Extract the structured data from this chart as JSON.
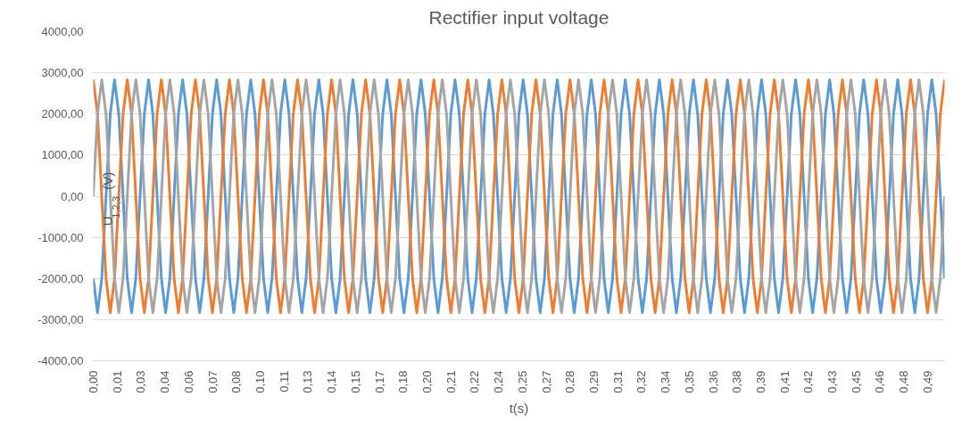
{
  "chart_data": {
    "type": "line",
    "title": "Rectifier input voltage",
    "xlabel": "t(s)",
    "ylabel": "U$_{1,2,3}$(V)",
    "x": [
      0,
      0.0025,
      0.005,
      0.0075,
      0.01,
      0.0125,
      0.015,
      0.0175,
      0.02,
      0.0225,
      0.025,
      0.0275,
      0.03,
      0.0325,
      0.035,
      0.0375,
      0.04,
      0.0425,
      0.045,
      0.0475,
      0.05,
      0.0525,
      0.055,
      0.0575,
      0.06,
      0.0625,
      0.065,
      0.0675,
      0.07,
      0.0725,
      0.075,
      0.0775,
      0.08,
      0.0825,
      0.085,
      0.0875,
      0.09,
      0.0925,
      0.095,
      0.0975,
      0.1,
      0.1025,
      0.105,
      0.1075,
      0.11,
      0.1125,
      0.115,
      0.1175,
      0.12,
      0.1225,
      0.125,
      0.1275,
      0.13,
      0.1325,
      0.135,
      0.1375,
      0.14,
      0.1425,
      0.145,
      0.1475,
      0.15,
      0.1525,
      0.155,
      0.1575,
      0.16,
      0.1625,
      0.165,
      0.1675,
      0.17,
      0.1725,
      0.175,
      0.1775,
      0.18,
      0.1825,
      0.185,
      0.1875,
      0.19,
      0.1925,
      0.195,
      0.1975,
      0.2,
      0.2025,
      0.205,
      0.2075,
      0.21,
      0.2125,
      0.215,
      0.2175,
      0.22,
      0.2225,
      0.225,
      0.2275,
      0.23,
      0.2325,
      0.235,
      0.2375,
      0.24,
      0.2425,
      0.245,
      0.2475,
      0.25,
      0.2525,
      0.255,
      0.2575,
      0.26,
      0.2625,
      0.265,
      0.2675,
      0.27,
      0.2725,
      0.275,
      0.2775,
      0.28,
      0.2825,
      0.285,
      0.2875,
      0.29,
      0.2925,
      0.295,
      0.2975,
      0.3,
      0.3025,
      0.305,
      0.3075,
      0.31,
      0.3125,
      0.315,
      0.3175,
      0.32,
      0.3225,
      0.325,
      0.3275,
      0.33,
      0.3325,
      0.335,
      0.3375,
      0.34,
      0.3425,
      0.345,
      0.3475,
      0.35,
      0.3525,
      0.355,
      0.3575,
      0.36,
      0.3625,
      0.365,
      0.3675,
      0.37,
      0.3725,
      0.375,
      0.3775,
      0.38,
      0.3825,
      0.385,
      0.3875,
      0.39,
      0.3925,
      0.395,
      0.3975,
      0.4,
      0.4025,
      0.405,
      0.4075,
      0.41,
      0.4125,
      0.415,
      0.4175,
      0.42,
      0.4225,
      0.425,
      0.4275,
      0.43,
      0.4325,
      0.435,
      0.4375,
      0.44,
      0.4425,
      0.445,
      0.4475,
      0.45,
      0.4525,
      0.455,
      0.4575,
      0.46,
      0.4625,
      0.465,
      0.4675,
      0.47,
      0.4725,
      0.475,
      0.4775,
      0.48,
      0.4825,
      0.485,
      0.4875,
      0.49,
      0.4925,
      0.495,
      0.4975,
      0.5
    ],
    "series": [
      {
        "color": "#5b9bd5",
        "values": [
          -2000,
          -2830,
          -2000,
          0,
          2000,
          2830,
          2000,
          0,
          -2000,
          -2830,
          -2000,
          0,
          2000,
          2830,
          2000,
          0,
          -2000,
          -2830,
          -2000,
          0,
          2000,
          2830,
          2000,
          0,
          -2000,
          -2830,
          -2000,
          0,
          2000,
          2830,
          2000,
          0,
          -2000,
          -2830,
          -2000,
          0,
          2000,
          2830,
          2000,
          0,
          -2000,
          -2830,
          -2000,
          0,
          2000,
          2830,
          2000,
          0,
          -2000,
          -2830,
          -2000,
          0,
          2000,
          2830,
          2000,
          0,
          -2000,
          -2830,
          -2000,
          0,
          2000,
          2830,
          2000,
          0,
          -2000,
          -2830,
          -2000,
          0,
          2000,
          2830,
          2000,
          0,
          -2000,
          -2830,
          -2000,
          0,
          2000,
          2830,
          2000,
          0,
          -2000,
          -2830,
          -2000,
          0,
          2000,
          2830,
          2000,
          0,
          -2000,
          -2830,
          -2000,
          0,
          2000,
          2830,
          2000,
          0,
          -2000,
          -2830,
          -2000,
          0,
          2000,
          2830,
          2000,
          0,
          -2000,
          -2830,
          -2000,
          0,
          2000,
          2830,
          2000,
          0,
          -2000,
          -2830,
          -2000,
          0,
          2000,
          2830,
          2000,
          0,
          -2000,
          -2830,
          -2000,
          0,
          2000,
          2830,
          2000,
          0,
          -2000,
          -2830,
          -2000,
          0,
          2000,
          2830,
          2000,
          0,
          -2000,
          -2830,
          -2000,
          0,
          2000,
          2830,
          2000,
          0,
          -2000,
          -2830,
          -2000,
          0,
          2000,
          2830,
          2000,
          0,
          -2000,
          -2830,
          -2000,
          0,
          2000,
          2830,
          2000,
          0,
          -2000,
          -2830,
          -2000,
          0,
          2000,
          2830,
          2000,
          0,
          -2000,
          -2830,
          -2000,
          0,
          2000,
          2830,
          2000,
          0,
          -2000,
          -2830,
          -2000,
          0,
          2000,
          2830,
          2000,
          0,
          -2000,
          -2830,
          -2000,
          0,
          2000,
          2830,
          2000,
          0,
          -2000,
          -2830,
          -2000,
          0,
          2000,
          2830,
          2000,
          0,
          -2000
        ]
      },
      {
        "color": "#ed7d31",
        "values": [
          2830,
          2000,
          0,
          -2000,
          -2830,
          -2000,
          0,
          2000,
          2830,
          2000,
          0,
          -2000,
          -2830,
          -2000,
          0,
          2000,
          2830,
          2000,
          0,
          -2000,
          -2830,
          -2000,
          0,
          2000,
          2830,
          2000,
          0,
          -2000,
          -2830,
          -2000,
          0,
          2000,
          2830,
          2000,
          0,
          -2000,
          -2830,
          -2000,
          0,
          2000,
          2830,
          2000,
          0,
          -2000,
          -2830,
          -2000,
          0,
          2000,
          2830,
          2000,
          0,
          -2000,
          -2830,
          -2000,
          0,
          2000,
          2830,
          2000,
          0,
          -2000,
          -2830,
          -2000,
          0,
          2000,
          2830,
          2000,
          0,
          -2000,
          -2830,
          -2000,
          0,
          2000,
          2830,
          2000,
          0,
          -2000,
          -2830,
          -2000,
          0,
          2000,
          2830,
          2000,
          0,
          -2000,
          -2830,
          -2000,
          0,
          2000,
          2830,
          2000,
          0,
          -2000,
          -2830,
          -2000,
          0,
          2000,
          2830,
          2000,
          0,
          -2000,
          -2830,
          -2000,
          0,
          2000,
          2830,
          2000,
          0,
          -2000,
          -2830,
          -2000,
          0,
          2000,
          2830,
          2000,
          0,
          -2000,
          -2830,
          -2000,
          0,
          2000,
          2830,
          2000,
          0,
          -2000,
          -2830,
          -2000,
          0,
          2000,
          2830,
          2000,
          0,
          -2000,
          -2830,
          -2000,
          0,
          2000,
          2830,
          2000,
          0,
          -2000,
          -2830,
          -2000,
          0,
          2000,
          2830,
          2000,
          0,
          -2000,
          -2830,
          -2000,
          0,
          2000,
          2830,
          2000,
          0,
          -2000,
          -2830,
          -2000,
          0,
          2000,
          2830,
          2000,
          0,
          -2000,
          -2830,
          -2000,
          0,
          2000,
          2830,
          2000,
          0,
          -2000,
          -2830,
          -2000,
          0,
          2000,
          2830,
          2000,
          0,
          -2000,
          -2830,
          -2000,
          0,
          2000,
          2830,
          2000,
          0,
          -2000,
          -2830,
          -2000,
          0,
          2000,
          2830,
          2000,
          0,
          -2000,
          -2830,
          -2000,
          0,
          2000,
          2830
        ]
      },
      {
        "color": "#a5a5a5",
        "values": [
          0,
          2000,
          2830,
          2000,
          0,
          -2000,
          -2830,
          -2000,
          0,
          2000,
          2830,
          2000,
          0,
          -2000,
          -2830,
          -2000,
          0,
          2000,
          2830,
          2000,
          0,
          -2000,
          -2830,
          -2000,
          0,
          2000,
          2830,
          2000,
          0,
          -2000,
          -2830,
          -2000,
          0,
          2000,
          2830,
          2000,
          0,
          -2000,
          -2830,
          -2000,
          0,
          2000,
          2830,
          2000,
          0,
          -2000,
          -2830,
          -2000,
          0,
          2000,
          2830,
          2000,
          0,
          -2000,
          -2830,
          -2000,
          0,
          2000,
          2830,
          2000,
          0,
          -2000,
          -2830,
          -2000,
          0,
          2000,
          2830,
          2000,
          0,
          -2000,
          -2830,
          -2000,
          0,
          2000,
          2830,
          2000,
          0,
          -2000,
          -2830,
          -2000,
          0,
          2000,
          2830,
          2000,
          0,
          -2000,
          -2830,
          -2000,
          0,
          2000,
          2830,
          2000,
          0,
          -2000,
          -2830,
          -2000,
          0,
          2000,
          2830,
          2000,
          0,
          -2000,
          -2830,
          -2000,
          0,
          2000,
          2830,
          2000,
          0,
          -2000,
          -2830,
          -2000,
          0,
          2000,
          2830,
          2000,
          0,
          -2000,
          -2830,
          -2000,
          0,
          2000,
          2830,
          2000,
          0,
          -2000,
          -2830,
          -2000,
          0,
          2000,
          2830,
          2000,
          0,
          -2000,
          -2830,
          -2000,
          0,
          2000,
          2830,
          2000,
          0,
          -2000,
          -2830,
          -2000,
          0,
          2000,
          2830,
          2000,
          0,
          -2000,
          -2830,
          -2000,
          0,
          2000,
          2830,
          2000,
          0,
          -2000,
          -2830,
          -2000,
          0,
          2000,
          2830,
          2000,
          0,
          -2000,
          -2830,
          -2000,
          0,
          2000,
          2830,
          2000,
          0,
          -2000,
          -2830,
          -2000,
          0,
          2000,
          2830,
          2000,
          0,
          -2000,
          -2830,
          -2000,
          0,
          2000,
          2830,
          2000,
          0,
          -2000,
          -2830,
          -2000,
          0,
          2000,
          2830,
          2000,
          0,
          -2000,
          -2830,
          -2000,
          0
        ]
      }
    ],
    "xlim": [
      0,
      0.5
    ],
    "ylim": [
      -4000,
      4000
    ],
    "yticks": [
      {
        "value": -4000,
        "label": "-4000,00"
      },
      {
        "value": -3000,
        "label": "-3000,00"
      },
      {
        "value": -2000,
        "label": "-2000,00"
      },
      {
        "value": -1000,
        "label": "-1000,00"
      },
      {
        "value": 0,
        "label": "0,00"
      },
      {
        "value": 1000,
        "label": "1000,00"
      },
      {
        "value": 2000,
        "label": "2000,00"
      },
      {
        "value": 3000,
        "label": "3000,00"
      },
      {
        "value": 4000,
        "label": "4000,00"
      }
    ],
    "xticks": [
      {
        "value": 0,
        "label": "0,00"
      },
      {
        "value": 0.014,
        "label": "0,01"
      },
      {
        "value": 0.028,
        "label": "0,03"
      },
      {
        "value": 0.042,
        "label": "0,04"
      },
      {
        "value": 0.056,
        "label": "0,06"
      },
      {
        "value": 0.07,
        "label": "0,07"
      },
      {
        "value": 0.084,
        "label": "0,08"
      },
      {
        "value": 0.098,
        "label": "0,10"
      },
      {
        "value": 0.112,
        "label": "0,11"
      },
      {
        "value": 0.126,
        "label": "0,13"
      },
      {
        "value": 0.14,
        "label": "0,14"
      },
      {
        "value": 0.154,
        "label": "0,15"
      },
      {
        "value": 0.168,
        "label": "0,17"
      },
      {
        "value": 0.182,
        "label": "0,18"
      },
      {
        "value": 0.196,
        "label": "0,20"
      },
      {
        "value": 0.21,
        "label": "0,21"
      },
      {
        "value": 0.224,
        "label": "0,22"
      },
      {
        "value": 0.238,
        "label": "0,24"
      },
      {
        "value": 0.252,
        "label": "0,25"
      },
      {
        "value": 0.266,
        "label": "0,27"
      },
      {
        "value": 0.28,
        "label": "0,28"
      },
      {
        "value": 0.294,
        "label": "0,29"
      },
      {
        "value": 0.308,
        "label": "0,31"
      },
      {
        "value": 0.322,
        "label": "0,32"
      },
      {
        "value": 0.336,
        "label": "0,34"
      },
      {
        "value": 0.35,
        "label": "0,35"
      },
      {
        "value": 0.364,
        "label": "0,36"
      },
      {
        "value": 0.378,
        "label": "0,38"
      },
      {
        "value": 0.392,
        "label": "0,39"
      },
      {
        "value": 0.406,
        "label": "0,41"
      },
      {
        "value": 0.42,
        "label": "0,42"
      },
      {
        "value": 0.434,
        "label": "0,43"
      },
      {
        "value": 0.448,
        "label": "0,45"
      },
      {
        "value": 0.462,
        "label": "0,46"
      },
      {
        "value": 0.476,
        "label": "0,48"
      },
      {
        "value": 0.49,
        "label": "0,49"
      }
    ],
    "grid": "y",
    "marker": "none",
    "line_style": "solid"
  }
}
